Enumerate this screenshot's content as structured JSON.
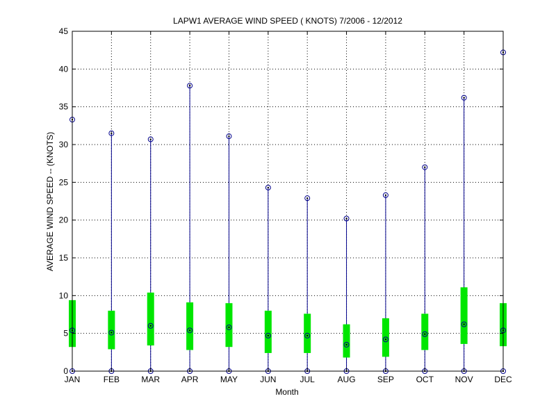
{
  "chart_data": {
    "type": "range-bar",
    "title": "LAPW1  AVERAGE WIND SPEED ( KNOTS) 7/2006 - 12/2012",
    "xlabel": "Month",
    "ylabel": "AVERAGE WIND SPEED -- (KNOTS)",
    "categories": [
      "JAN",
      "FEB",
      "MAR",
      "APR",
      "MAY",
      "JUN",
      "JUL",
      "AUG",
      "SEP",
      "OCT",
      "NOV",
      "DEC"
    ],
    "ylim": [
      0,
      45
    ],
    "yticks": [
      "0",
      "5",
      "10",
      "15",
      "20",
      "25",
      "30",
      "35",
      "40",
      "45"
    ],
    "grid": true,
    "series": [
      {
        "name": "min",
        "values": [
          0,
          0,
          0,
          0,
          0,
          0,
          0,
          0,
          0,
          0,
          0,
          0
        ]
      },
      {
        "name": "max",
        "values": [
          33.3,
          31.5,
          30.7,
          37.8,
          31.1,
          24.3,
          22.9,
          20.2,
          23.3,
          27.0,
          36.2,
          42.2
        ]
      },
      {
        "name": "mean",
        "values": [
          5.4,
          5.1,
          6.0,
          5.4,
          5.8,
          4.7,
          4.7,
          3.5,
          4.2,
          4.9,
          6.2,
          5.4
        ]
      },
      {
        "name": "lower",
        "values": [
          3.2,
          2.9,
          3.4,
          2.8,
          3.2,
          2.4,
          2.4,
          1.8,
          1.9,
          2.8,
          3.6,
          3.3
        ]
      },
      {
        "name": "upper",
        "values": [
          9.4,
          8.0,
          10.4,
          9.1,
          9.0,
          8.0,
          7.6,
          6.2,
          7.0,
          7.6,
          11.1,
          9.0
        ]
      }
    ],
    "colors": {
      "whisker": "#00008b",
      "box": "#00e600",
      "grid": "#000000"
    }
  }
}
